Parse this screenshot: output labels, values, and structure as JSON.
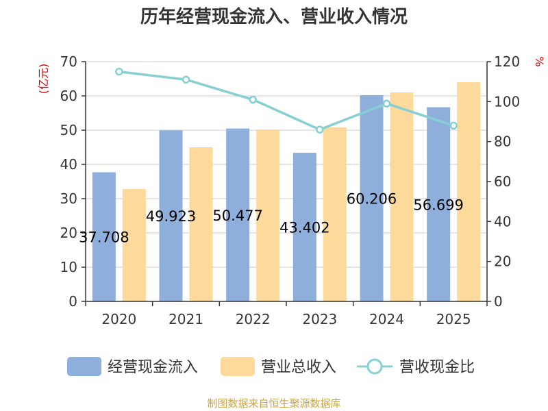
{
  "chart_data": {
    "type": "bar",
    "title": "历年经营现金流入、营业收入情况",
    "categories": [
      "2020",
      "2021",
      "2022",
      "2023",
      "2024",
      "2025"
    ],
    "left_axis": {
      "unit_label": "(亿元)",
      "ylim": [
        0,
        70
      ],
      "ticks": [
        "0",
        "10",
        "20",
        "30",
        "40",
        "50",
        "60",
        "70"
      ]
    },
    "right_axis": {
      "unit_label": "%",
      "ylim": [
        0,
        120
      ],
      "ticks": [
        "0",
        "20",
        "40",
        "60",
        "80",
        "100",
        "120"
      ]
    },
    "series": [
      {
        "name": "经营现金流入",
        "type": "bar",
        "axis": "left",
        "color": "#8eaedb",
        "values": [
          37.708,
          49.923,
          50.477,
          43.402,
          60.206,
          56.699
        ],
        "labels": [
          "37.708",
          "49.923",
          "50.477",
          "43.402",
          "60.206",
          "56.699"
        ]
      },
      {
        "name": "营业总收入",
        "type": "bar",
        "axis": "left",
        "color": "#fdd99b",
        "values": [
          32.8,
          45.0,
          50.2,
          50.8,
          61.0,
          64.0
        ]
      },
      {
        "name": "营收现金比",
        "type": "line",
        "axis": "right",
        "color": "#86d0d4",
        "values": [
          115,
          111,
          101,
          86,
          99,
          88
        ]
      }
    ],
    "source": "制图数据来自恒生聚源数据库"
  }
}
